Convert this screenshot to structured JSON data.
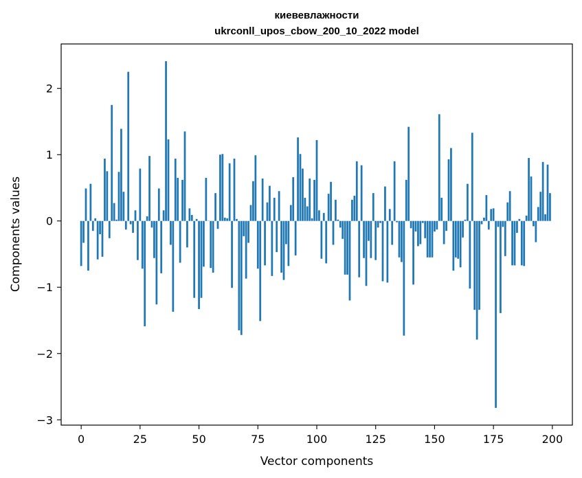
{
  "chart_data": {
    "type": "bar",
    "title": "киевевлажности",
    "subtitle": "ukrconll_upos_cbow_200_10_2022 model",
    "xlabel": "Vector components",
    "ylabel": "Components values",
    "xlim": [
      -8.5,
      208.5
    ],
    "ylim": [
      -3.08,
      2.67
    ],
    "xticks": [
      0,
      25,
      50,
      75,
      100,
      125,
      150,
      175,
      200
    ],
    "xtick_labels": [
      "0",
      "25",
      "50",
      "75",
      "100",
      "125",
      "150",
      "175",
      "200"
    ],
    "yticks": [
      -3,
      -2,
      -1,
      0,
      1,
      2
    ],
    "ytick_labels": [
      "−3",
      "−2",
      "−1",
      "0",
      "1",
      "2"
    ],
    "grid": false,
    "bar_color": "#1f77b4",
    "x": [
      0,
      1,
      2,
      3,
      4,
      5,
      6,
      7,
      8,
      9,
      10,
      11,
      12,
      13,
      14,
      15,
      16,
      17,
      18,
      19,
      20,
      21,
      22,
      23,
      24,
      25,
      26,
      27,
      28,
      29,
      30,
      31,
      32,
      33,
      34,
      35,
      36,
      37,
      38,
      39,
      40,
      41,
      42,
      43,
      44,
      45,
      46,
      47,
      48,
      49,
      50,
      51,
      52,
      53,
      54,
      55,
      56,
      57,
      58,
      59,
      60,
      61,
      62,
      63,
      64,
      65,
      66,
      67,
      68,
      69,
      70,
      71,
      72,
      73,
      74,
      75,
      76,
      77,
      78,
      79,
      80,
      81,
      82,
      83,
      84,
      85,
      86,
      87,
      88,
      89,
      90,
      91,
      92,
      93,
      94,
      95,
      96,
      97,
      98,
      99,
      100,
      101,
      102,
      103,
      104,
      105,
      106,
      107,
      108,
      109,
      110,
      111,
      112,
      113,
      114,
      115,
      116,
      117,
      118,
      119,
      120,
      121,
      122,
      123,
      124,
      125,
      126,
      127,
      128,
      129,
      130,
      131,
      132,
      133,
      134,
      135,
      136,
      137,
      138,
      139,
      140,
      141,
      142,
      143,
      144,
      145,
      146,
      147,
      148,
      149,
      150,
      151,
      152,
      153,
      154,
      155,
      156,
      157,
      158,
      159,
      160,
      161,
      162,
      163,
      164,
      165,
      166,
      167,
      168,
      169,
      170,
      171,
      172,
      173,
      174,
      175,
      176,
      177,
      178,
      179,
      180,
      181,
      182,
      183,
      184,
      185,
      186,
      187,
      188,
      189,
      190,
      191,
      192,
      193,
      194,
      195,
      196,
      197,
      198,
      199
    ],
    "values": [
      -0.68,
      -0.33,
      0.49,
      -0.75,
      0.56,
      -0.15,
      0.04,
      -0.58,
      -0.2,
      -0.54,
      0.94,
      0.75,
      -0.26,
      1.75,
      0.27,
      0.02,
      0.74,
      1.39,
      0.44,
      -0.13,
      2.25,
      -0.05,
      -0.18,
      0.16,
      -0.59,
      0.79,
      -0.72,
      -1.59,
      0.07,
      0.98,
      -0.1,
      -0.56,
      -1.26,
      0.49,
      -0.79,
      0.16,
      2.41,
      1.23,
      -0.36,
      -1.37,
      0.94,
      0.65,
      -0.63,
      0.62,
      1.35,
      -0.4,
      0.19,
      0.09,
      -1.16,
      0.03,
      -1.33,
      -1.16,
      -0.69,
      0.65,
      0.0,
      -0.71,
      -0.78,
      0.42,
      -0.12,
      1.0,
      1.01,
      0.05,
      0.04,
      0.87,
      -1.01,
      0.94,
      0.03,
      -1.65,
      -1.72,
      -0.23,
      -0.87,
      -0.33,
      0.24,
      0.6,
      0.99,
      -0.72,
      -1.51,
      0.64,
      -0.67,
      0.28,
      0.53,
      -0.83,
      0.35,
      -0.47,
      0.45,
      -0.78,
      -0.89,
      -0.35,
      -0.68,
      0.24,
      0.66,
      -0.52,
      1.26,
      1.01,
      0.79,
      0.35,
      0.22,
      0.64,
      0.04,
      0.62,
      1.22,
      0.16,
      -0.57,
      0.12,
      -0.64,
      0.41,
      0.59,
      -0.36,
      0.32,
      0.02,
      -0.1,
      -0.27,
      -0.81,
      -0.81,
      -1.2,
      0.32,
      0.38,
      0.9,
      -0.85,
      0.84,
      -0.56,
      -0.98,
      -0.3,
      -0.56,
      0.42,
      -0.59,
      -0.1,
      -0.03,
      -0.91,
      0.52,
      -0.93,
      0.18,
      -0.36,
      0.9,
      -0.02,
      -0.55,
      -0.62,
      -1.73,
      0.62,
      1.42,
      -0.11,
      -0.96,
      -0.16,
      -0.38,
      -0.35,
      -0.03,
      -0.26,
      -0.55,
      -0.55,
      -0.55,
      -0.16,
      -0.13,
      1.61,
      0.35,
      -0.35,
      -0.15,
      0.93,
      1.1,
      -0.75,
      -0.55,
      -0.57,
      -0.7,
      -0.25,
      0.02,
      0.56,
      -1.02,
      1.33,
      -1.34,
      -1.79,
      -1.34,
      -0.05,
      0.05,
      0.39,
      -0.13,
      0.18,
      0.19,
      -2.82,
      -0.09,
      -1.39,
      -0.09,
      -0.53,
      0.28,
      0.45,
      -0.67,
      -0.67,
      -0.18,
      0.03,
      -0.67,
      -0.68,
      0.08,
      0.95,
      0.67,
      -0.08,
      -0.32,
      0.21,
      0.44,
      0.89,
      0.1,
      0.85,
      0.42
    ]
  }
}
